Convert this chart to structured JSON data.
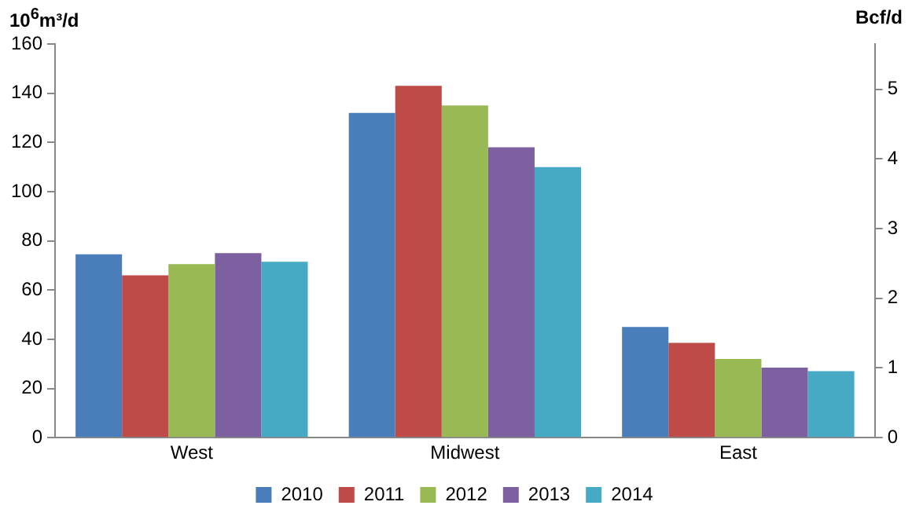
{
  "chart_data": {
    "type": "bar",
    "categories": [
      "West",
      "Midwest",
      "East"
    ],
    "series": [
      {
        "name": "2010",
        "color": "#4a7ebb",
        "values": [
          74.5,
          132,
          45
        ]
      },
      {
        "name": "2011",
        "color": "#be4b48",
        "values": [
          66,
          143,
          38.5
        ]
      },
      {
        "name": "2012",
        "color": "#98b954",
        "values": [
          70.5,
          135,
          32
        ]
      },
      {
        "name": "2013",
        "color": "#7d60a0",
        "values": [
          75,
          118,
          28.5
        ]
      },
      {
        "name": "2014",
        "color": "#46aac5",
        "values": [
          71.5,
          110,
          27
        ]
      }
    ],
    "ylabel": "10$^{6}$m³/d",
    "y2label": "Bcf/d",
    "ylim": [
      0,
      160
    ],
    "yticks": [
      0,
      20,
      40,
      60,
      80,
      100,
      120,
      140,
      160
    ],
    "y2lim": [
      0,
      5.65
    ],
    "y2ticks": [
      0,
      1,
      2,
      3,
      4,
      5
    ],
    "grid": false,
    "legend": "bottom"
  }
}
